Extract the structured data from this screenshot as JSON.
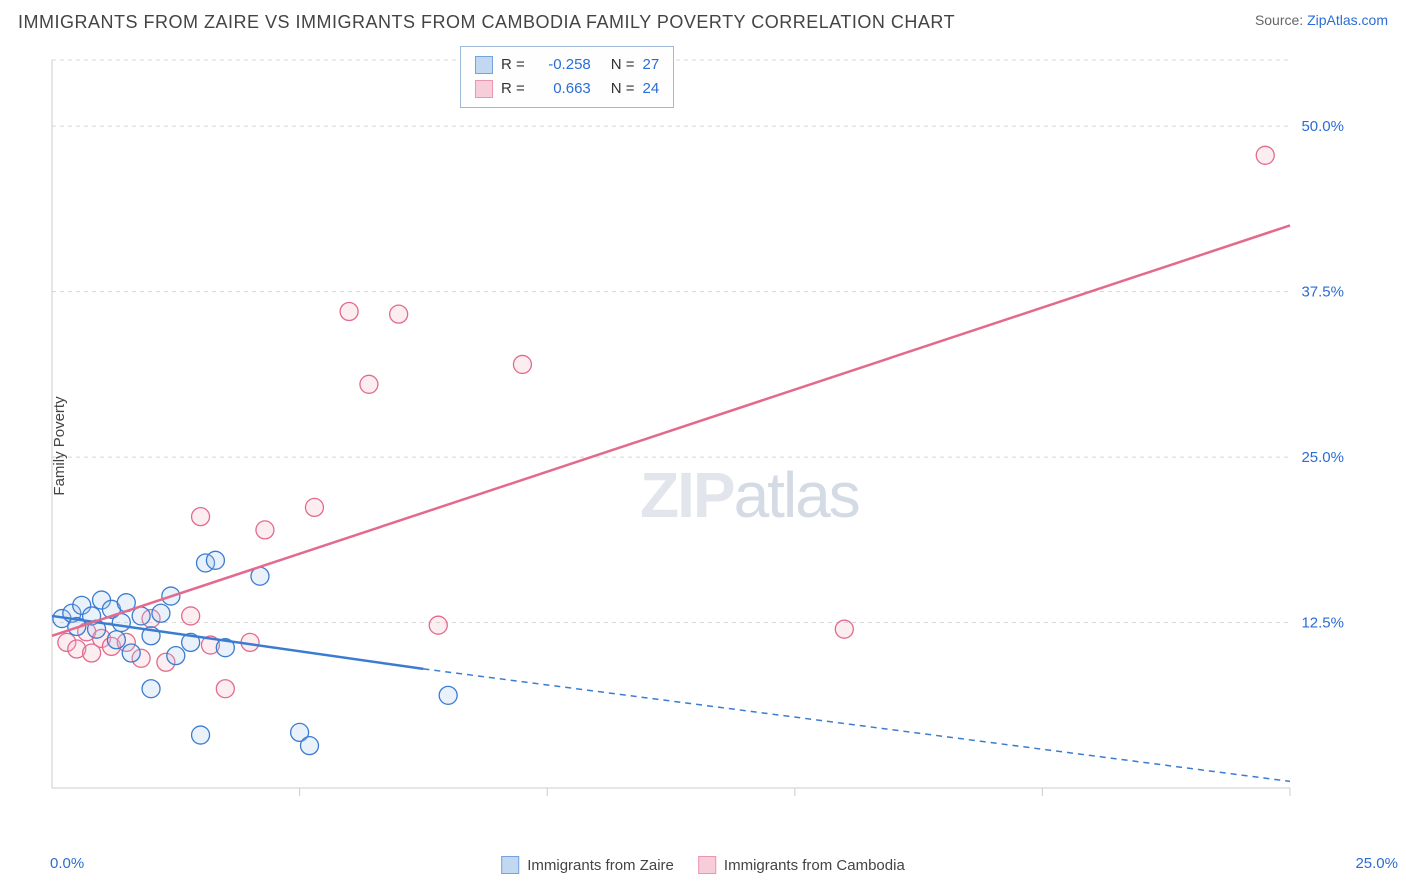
{
  "header": {
    "title": "IMMIGRANTS FROM ZAIRE VS IMMIGRANTS FROM CAMBODIA FAMILY POVERTY CORRELATION CHART",
    "source_prefix": "Source: ",
    "source_link": "ZipAtlas.com"
  },
  "ylabel": "Family Poverty",
  "watermark_a": "ZIP",
  "watermark_b": "atlas",
  "chart": {
    "type": "scatter",
    "background_color": "#ffffff",
    "grid_color": "#d8d8d8",
    "grid_dash": "4,4",
    "axis_color": "#cccccc",
    "tick_color": "#cccccc",
    "label_color": "#2a6dd4",
    "xlim": [
      0,
      25
    ],
    "ylim": [
      0,
      55
    ],
    "x_gridlines": [
      5,
      10,
      15,
      20,
      25
    ],
    "y_gridlines_labeled": [
      12.5,
      25.0,
      37.5,
      50.0
    ],
    "x_tick_label_origin": "0.0%",
    "x_tick_label_max": "25.0%",
    "y_tick_labels": [
      "12.5%",
      "25.0%",
      "37.5%",
      "50.0%"
    ],
    "marker_radius": 9,
    "marker_stroke_width": 1.3,
    "marker_fill_opacity": 0.25
  },
  "series": [
    {
      "key": "zaire",
      "label": "Immigrants from Zaire",
      "color_stroke": "#3b7cd1",
      "color_fill": "#a9c8ec",
      "R": "-0.258",
      "N": "27",
      "trend": {
        "x1": 0,
        "y1": 13.0,
        "x2": 7.5,
        "y2": 9.0,
        "x2_ext": 25,
        "y2_ext": 0.5,
        "dash_from_x": 7.5
      },
      "points": [
        [
          0.2,
          12.8
        ],
        [
          0.4,
          13.2
        ],
        [
          0.5,
          12.2
        ],
        [
          0.6,
          13.8
        ],
        [
          0.8,
          13.0
        ],
        [
          0.9,
          12.0
        ],
        [
          1.0,
          14.2
        ],
        [
          1.2,
          13.5
        ],
        [
          1.3,
          11.2
        ],
        [
          1.4,
          12.5
        ],
        [
          1.5,
          14.0
        ],
        [
          1.6,
          10.2
        ],
        [
          1.8,
          13.0
        ],
        [
          2.0,
          7.5
        ],
        [
          2.0,
          11.5
        ],
        [
          2.2,
          13.2
        ],
        [
          2.4,
          14.5
        ],
        [
          2.5,
          10.0
        ],
        [
          2.8,
          11.0
        ],
        [
          3.0,
          4.0
        ],
        [
          3.1,
          17.0
        ],
        [
          3.3,
          17.2
        ],
        [
          3.5,
          10.6
        ],
        [
          4.2,
          16.0
        ],
        [
          5.0,
          4.2
        ],
        [
          5.2,
          3.2
        ],
        [
          8.0,
          7.0
        ]
      ]
    },
    {
      "key": "cambodia",
      "label": "Immigrants from Cambodia",
      "color_stroke": "#e36a8d",
      "color_fill": "#f4b9c9",
      "R": "0.663",
      "N": "24",
      "trend": {
        "x1": 0,
        "y1": 11.5,
        "x2": 25,
        "y2": 42.5
      },
      "points": [
        [
          0.3,
          11.0
        ],
        [
          0.5,
          10.5
        ],
        [
          0.7,
          11.8
        ],
        [
          0.8,
          10.2
        ],
        [
          1.0,
          11.3
        ],
        [
          1.2,
          10.7
        ],
        [
          1.5,
          11.0
        ],
        [
          1.8,
          9.8
        ],
        [
          2.0,
          12.8
        ],
        [
          2.3,
          9.5
        ],
        [
          2.8,
          13.0
        ],
        [
          3.0,
          20.5
        ],
        [
          3.2,
          10.8
        ],
        [
          3.5,
          7.5
        ],
        [
          4.0,
          11.0
        ],
        [
          4.3,
          19.5
        ],
        [
          5.3,
          21.2
        ],
        [
          6.0,
          36.0
        ],
        [
          6.4,
          30.5
        ],
        [
          7.0,
          35.8
        ],
        [
          7.8,
          12.3
        ],
        [
          9.5,
          32.0
        ],
        [
          16.0,
          12.0
        ],
        [
          24.5,
          47.8
        ]
      ]
    }
  ],
  "stats_legend": {
    "R_label": "R =",
    "N_label": "N ="
  }
}
